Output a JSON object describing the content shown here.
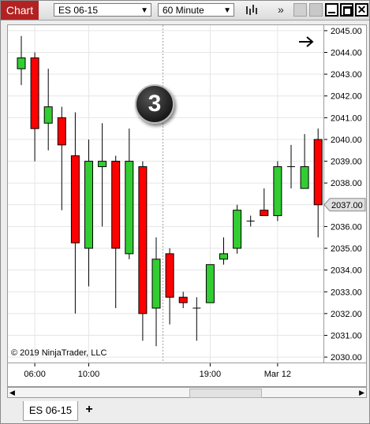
{
  "toolbar": {
    "chart_label": "Chart",
    "instrument": "ES 06-15",
    "interval": "60 Minute"
  },
  "copyright": "© 2019 NinjaTrader, LLC",
  "badge_number": "3",
  "tabs": [
    {
      "label": "ES 06-15"
    }
  ],
  "add_tab_label": "+",
  "colors": {
    "up": "#32cd32",
    "down": "#ff0000",
    "wick": "#000000",
    "grid": "#e6e6e6",
    "accent": "#b22222"
  },
  "chart_data": {
    "type": "candlestick",
    "y_ticks": [
      "2045.00",
      "2044.00",
      "2043.00",
      "2042.00",
      "2041.00",
      "2040.00",
      "2039.00",
      "2038.00",
      "2037.00",
      "2036.00",
      "2035.00",
      "2034.00",
      "2033.00",
      "2032.00",
      "2031.00",
      "2030.00"
    ],
    "ylim": [
      2029.75,
      2045.25
    ],
    "last_price": "2037.00",
    "x_labels": [
      {
        "label": "06:00",
        "bar": 1
      },
      {
        "label": "10:00",
        "bar": 5
      },
      {
        "label": "19:00",
        "bar": 14
      },
      {
        "label": "Mar 12",
        "bar": 19
      }
    ],
    "session_break_bar": 10.5,
    "candles": [
      {
        "o": 2043.25,
        "h": 2044.75,
        "l": 2042.5,
        "c": 2043.75
      },
      {
        "o": 2043.75,
        "h": 2044.0,
        "l": 2039.0,
        "c": 2040.5
      },
      {
        "o": 2040.75,
        "h": 2043.25,
        "l": 2039.5,
        "c": 2041.5
      },
      {
        "o": 2041.0,
        "h": 2041.5,
        "l": 2036.75,
        "c": 2039.75
      },
      {
        "o": 2039.25,
        "h": 2041.25,
        "l": 2032.0,
        "c": 2035.25
      },
      {
        "o": 2035.0,
        "h": 2040.0,
        "l": 2033.25,
        "c": 2039.0
      },
      {
        "o": 2038.75,
        "h": 2040.75,
        "l": 2036.0,
        "c": 2039.0
      },
      {
        "o": 2039.0,
        "h": 2039.25,
        "l": 2032.25,
        "c": 2035.0
      },
      {
        "o": 2034.75,
        "h": 2040.5,
        "l": 2034.5,
        "c": 2039.0
      },
      {
        "o": 2038.75,
        "h": 2039.0,
        "l": 2030.75,
        "c": 2032.0
      },
      {
        "o": 2032.25,
        "h": 2035.5,
        "l": 2030.5,
        "c": 2034.5
      },
      {
        "o": 2034.75,
        "h": 2035.0,
        "l": 2031.5,
        "c": 2032.75
      },
      {
        "o": 2032.75,
        "h": 2033.0,
        "l": 2032.25,
        "c": 2032.5
      },
      {
        "o": 2032.25,
        "h": 2032.75,
        "l": 2030.75,
        "c": 2032.25
      },
      {
        "o": 2032.5,
        "h": 2034.25,
        "l": 2032.5,
        "c": 2034.25
      },
      {
        "o": 2034.5,
        "h": 2035.5,
        "l": 2034.25,
        "c": 2034.75
      },
      {
        "o": 2035.0,
        "h": 2037.0,
        "l": 2034.75,
        "c": 2036.75
      },
      {
        "o": 2036.25,
        "h": 2036.5,
        "l": 2036.0,
        "c": 2036.25
      },
      {
        "o": 2036.75,
        "h": 2037.75,
        "l": 2036.5,
        "c": 2036.5
      },
      {
        "o": 2036.5,
        "h": 2039.0,
        "l": 2036.25,
        "c": 2038.75
      },
      {
        "o": 2038.75,
        "h": 2039.75,
        "l": 2037.75,
        "c": 2038.75
      },
      {
        "o": 2037.75,
        "h": 2040.25,
        "l": 2037.75,
        "c": 2038.75
      },
      {
        "o": 2040.0,
        "h": 2040.5,
        "l": 2035.5,
        "c": 2037.0
      }
    ]
  }
}
